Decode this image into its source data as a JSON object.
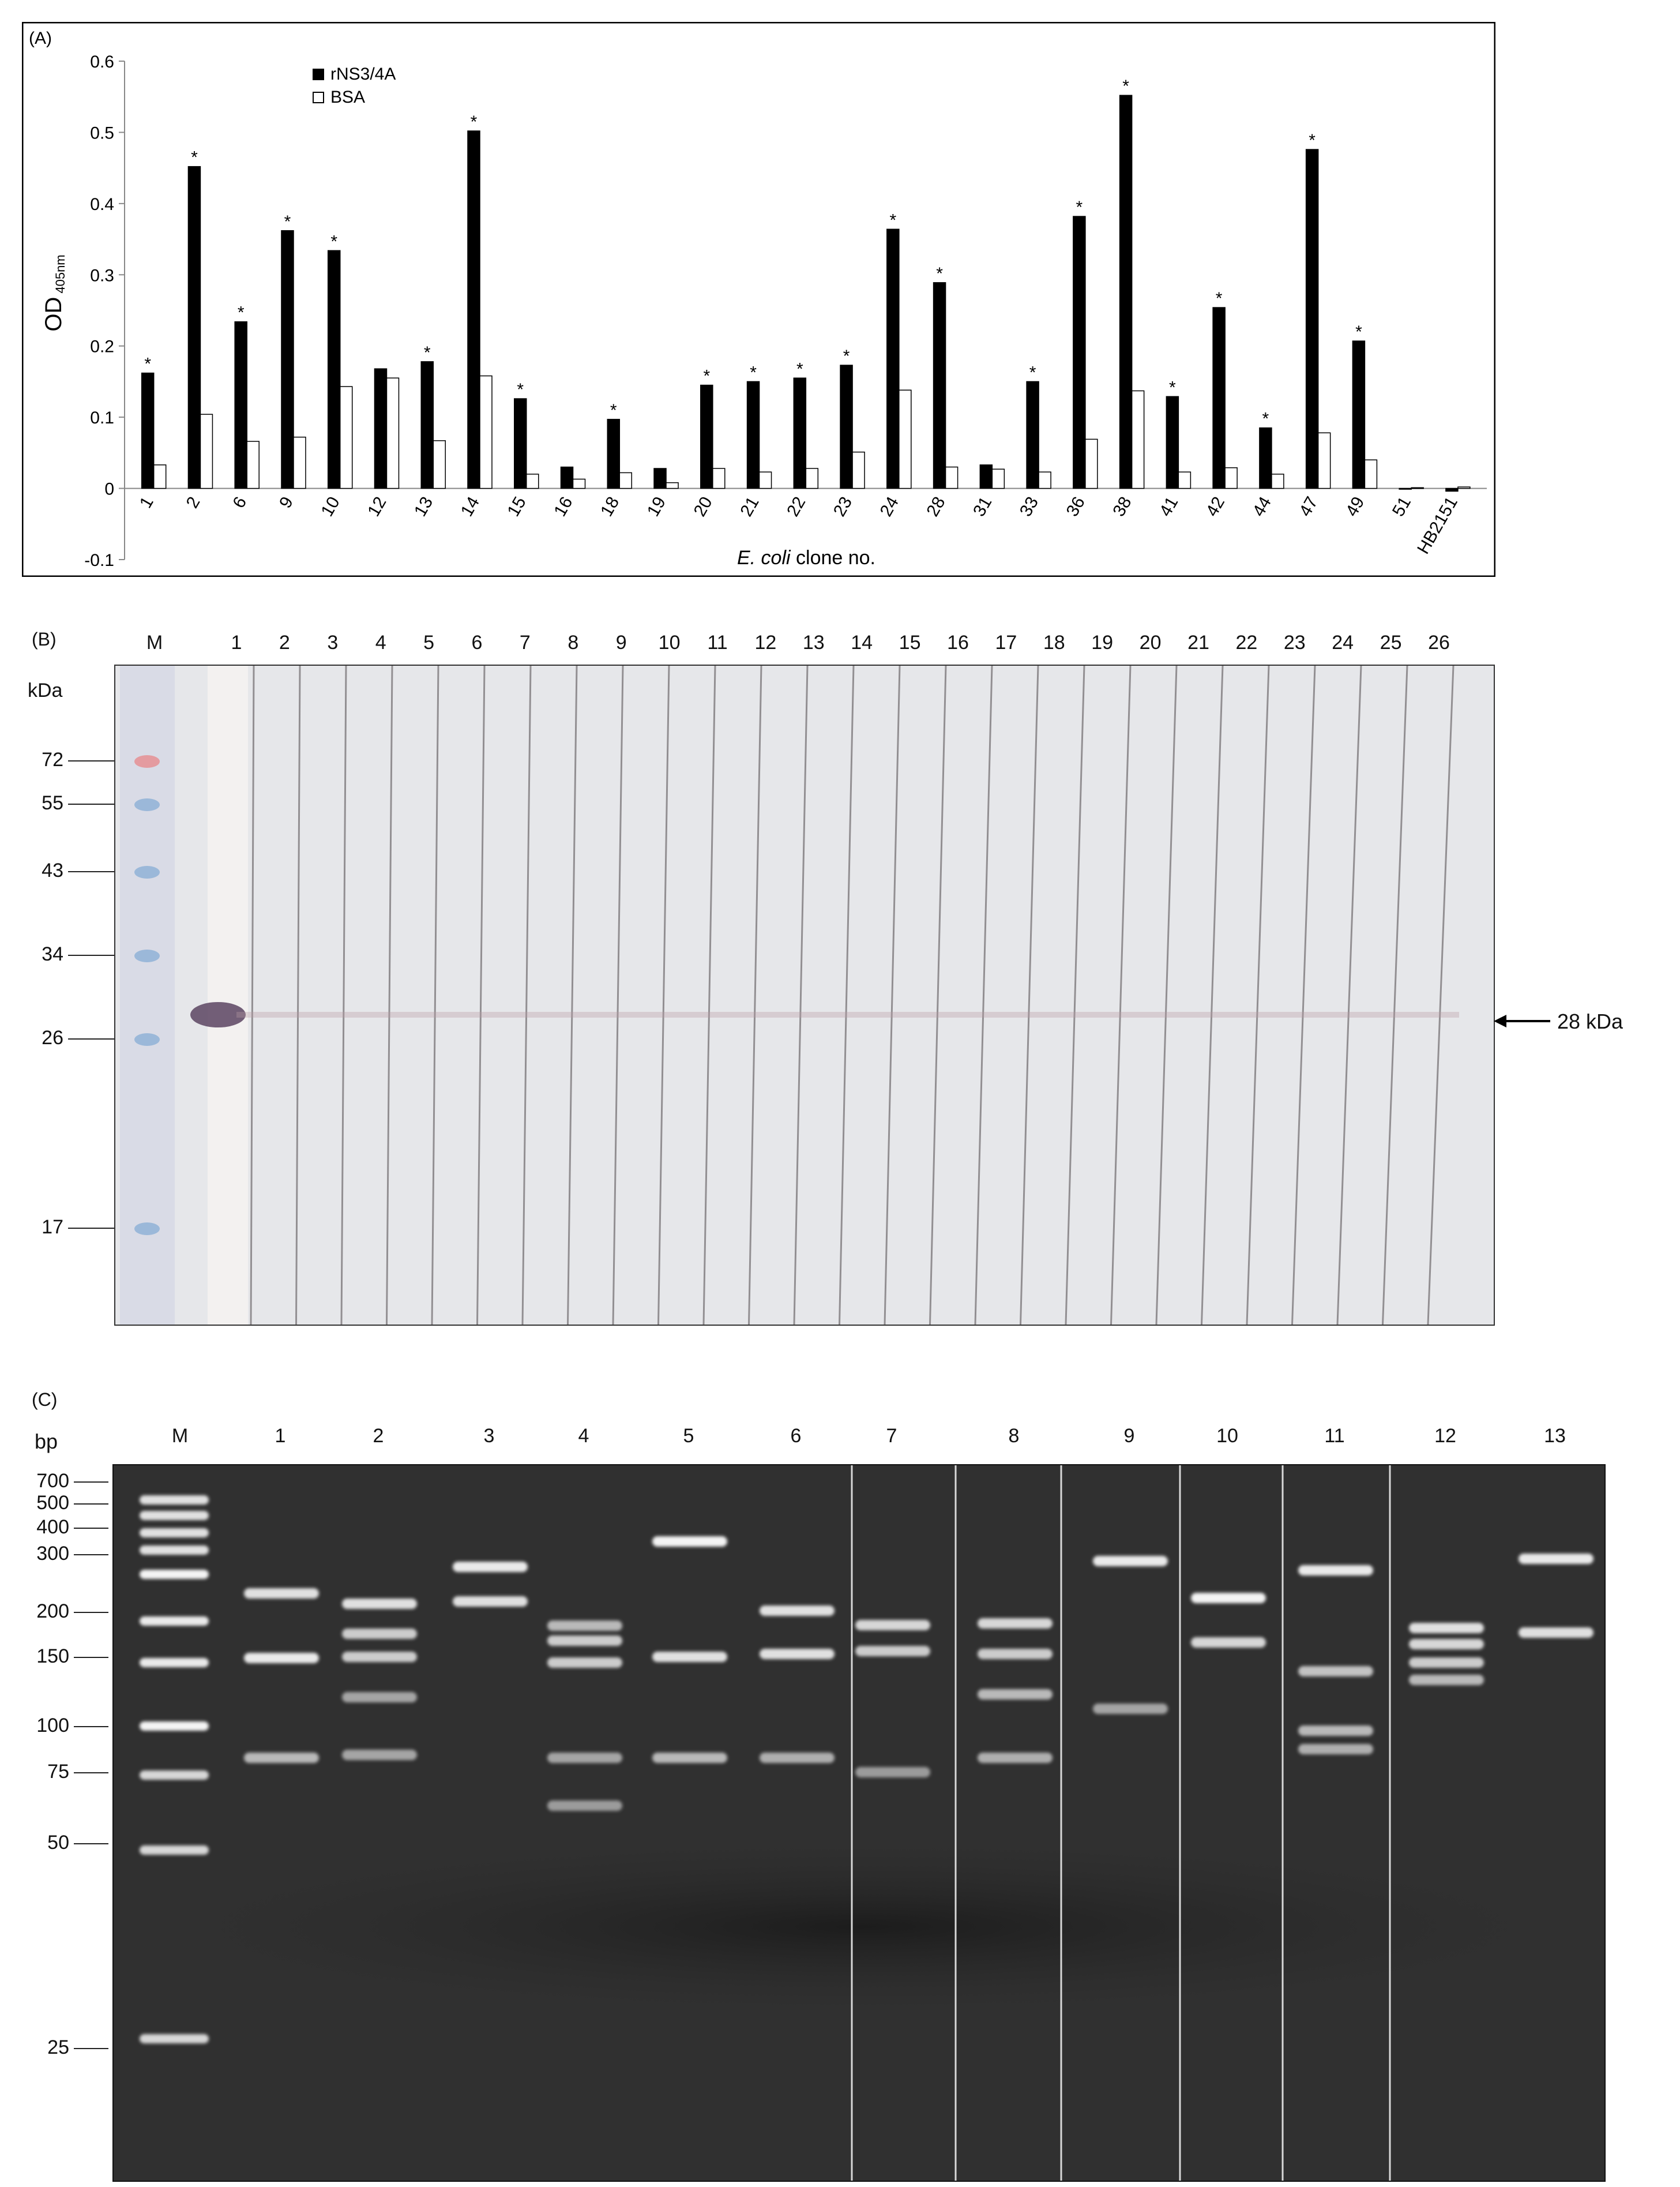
{
  "panel_a": {
    "label": "(A)",
    "chart_data": {
      "type": "bar",
      "ylabel": "OD",
      "ylabel_sub": "405nm",
      "xlabel_italic": "E. coli",
      "xlabel_rest": " clone no.",
      "ylim": [
        -0.1,
        0.6
      ],
      "yticks": [
        "0.6",
        "0.5",
        "0.4",
        "0.3",
        "0.2",
        "0.1",
        "0",
        "-0.1"
      ],
      "categories": [
        "1",
        "2",
        "6",
        "9",
        "10",
        "12",
        "13",
        "14",
        "15",
        "16",
        "18",
        "19",
        "20",
        "21",
        "22",
        "23",
        "24",
        "28",
        "31",
        "33",
        "36",
        "38",
        "41",
        "42",
        "44",
        "47",
        "49",
        "51",
        "HB2151"
      ],
      "series": [
        {
          "name": "rNS3/4A",
          "color": "#000000",
          "values": [
            0.162,
            0.452,
            0.234,
            0.362,
            0.334,
            0.168,
            0.178,
            0.502,
            0.126,
            0.03,
            0.097,
            0.028,
            0.145,
            0.15,
            0.155,
            0.173,
            0.364,
            0.289,
            0.033,
            0.15,
            0.382,
            0.552,
            0.129,
            0.254,
            0.085,
            0.476,
            0.207,
            0.0,
            -0.004
          ]
        },
        {
          "name": "BSA",
          "color": "#ffffff",
          "values": [
            0.033,
            0.104,
            0.066,
            0.072,
            0.143,
            0.155,
            0.067,
            0.158,
            0.02,
            0.013,
            0.022,
            0.008,
            0.028,
            0.023,
            0.028,
            0.051,
            0.138,
            0.03,
            0.027,
            0.023,
            0.069,
            0.137,
            0.023,
            0.029,
            0.02,
            0.078,
            0.04,
            0.001,
            0.002
          ]
        }
      ],
      "significance_marker": "*",
      "significant": [
        true,
        true,
        true,
        true,
        true,
        false,
        true,
        true,
        true,
        false,
        true,
        false,
        true,
        true,
        true,
        true,
        true,
        true,
        false,
        true,
        true,
        true,
        true,
        true,
        true,
        true,
        true,
        false,
        false
      ],
      "legend_position": "top-left"
    }
  },
  "panel_b": {
    "label": "(B)",
    "marker_label": "M",
    "unit_label": "kDa",
    "lanes": [
      "1",
      "2",
      "3",
      "4",
      "5",
      "6",
      "7",
      "8",
      "9",
      "10",
      "11",
      "12",
      "13",
      "14",
      "15",
      "16",
      "17",
      "18",
      "19",
      "20",
      "21",
      "22",
      "23",
      "24",
      "25",
      "26"
    ],
    "mw_markers": [
      "72",
      "55",
      "43",
      "34",
      "26",
      "17"
    ],
    "arrow_label": "28 kDa"
  },
  "panel_c": {
    "label": "(C)",
    "marker_label": "M",
    "unit_label": "bp",
    "lanes": [
      "1",
      "2",
      "3",
      "4",
      "5",
      "6",
      "7",
      "8",
      "9",
      "10",
      "11",
      "12",
      "13"
    ],
    "mw_markers": [
      "700",
      "500",
      "400",
      "300",
      "200",
      "150",
      "100",
      "75",
      "50",
      "25"
    ]
  }
}
